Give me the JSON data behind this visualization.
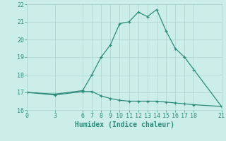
{
  "xlabel": "Humidex (Indice chaleur)",
  "line1_x": [
    0,
    3,
    6,
    7,
    8,
    9,
    10,
    11,
    12,
    13,
    14,
    15,
    16,
    17,
    18,
    21
  ],
  "line1_y": [
    17.0,
    16.9,
    17.1,
    18.0,
    19.0,
    19.7,
    20.9,
    21.0,
    21.55,
    21.3,
    21.7,
    20.5,
    19.5,
    19.0,
    18.3,
    16.2
  ],
  "line2_x": [
    0,
    3,
    6,
    7,
    8,
    9,
    10,
    11,
    12,
    13,
    14,
    15,
    16,
    17,
    18,
    21
  ],
  "line2_y": [
    17.0,
    16.85,
    17.05,
    17.05,
    16.8,
    16.65,
    16.55,
    16.5,
    16.5,
    16.5,
    16.5,
    16.45,
    16.4,
    16.35,
    16.3,
    16.2
  ],
  "line_color": "#2d8b7a",
  "bg_color": "#cceee8",
  "grid_color": "#aad4ce",
  "xlim": [
    0,
    21
  ],
  "ylim": [
    16,
    22
  ],
  "xticks": [
    0,
    3,
    6,
    7,
    8,
    9,
    10,
    11,
    12,
    13,
    14,
    15,
    16,
    17,
    18,
    21
  ],
  "yticks": [
    16,
    17,
    18,
    19,
    20,
    21,
    22
  ],
  "xlabel_fontsize": 7,
  "tick_fontsize": 6,
  "linewidth": 0.9,
  "markersize": 3.5,
  "markeredgewidth": 0.9
}
